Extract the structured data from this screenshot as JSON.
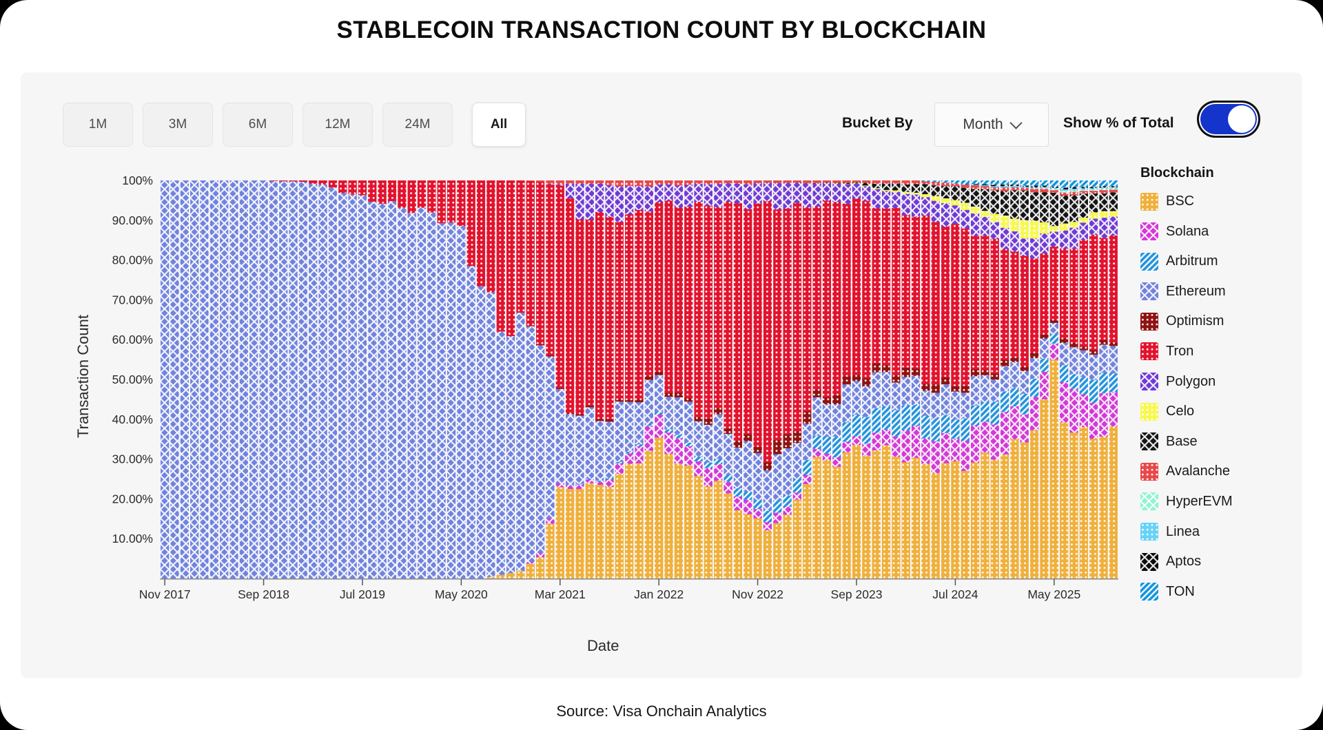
{
  "page": {
    "title": "STABLECOIN TRANSACTION COUNT BY BLOCKCHAIN",
    "source": "Source: Visa Onchain Analytics"
  },
  "controls": {
    "time_ranges": [
      "1M",
      "3M",
      "6M",
      "12M",
      "24M",
      "All"
    ],
    "selected_range": "All",
    "bucket_by_label": "Bucket By",
    "bucket_by_value": "Month",
    "toggle_label": "Show % of Total",
    "toggle_on": true,
    "toggle_color": "#1434CB"
  },
  "legend": {
    "title": "Blockchain",
    "items": [
      {
        "label": "BSC",
        "color": "#EFB03C",
        "pattern": "dots"
      },
      {
        "label": "Solana",
        "color": "#D438D8",
        "pattern": "cross"
      },
      {
        "label": "Arbitrum",
        "color": "#2493DD",
        "pattern": "stripes"
      },
      {
        "label": "Ethereum",
        "color": "#7183DE",
        "pattern": "cross"
      },
      {
        "label": "Optimism",
        "color": "#8F1212",
        "pattern": "dots"
      },
      {
        "label": "Tron",
        "color": "#E2132E",
        "pattern": "dots"
      },
      {
        "label": "Polygon",
        "color": "#6F3BD5",
        "pattern": "cross"
      },
      {
        "label": "Celo",
        "color": "#F7F852",
        "pattern": "dots"
      },
      {
        "label": "Base",
        "color": "#151515",
        "pattern": "cross"
      },
      {
        "label": "Avalanche",
        "color": "#E8484A",
        "pattern": "dots"
      },
      {
        "label": "HyperEVM",
        "color": "#93F2D1",
        "pattern": "cross"
      },
      {
        "label": "Linea",
        "color": "#66D2F6",
        "pattern": "dots"
      },
      {
        "label": "Aptos",
        "color": "#0A0A0A",
        "pattern": "cross"
      },
      {
        "label": "TON",
        "color": "#1494DE",
        "pattern": "stripes"
      }
    ]
  },
  "chart_data": {
    "type": "bar",
    "variant": "stacked-100-percent-monthly",
    "title": "STABLECOIN TRANSACTION COUNT BY BLOCKCHAIN",
    "xlabel": "Date",
    "ylabel": "Transaction Count",
    "x_start": "Nov 2017",
    "x_end": "Nov 2025",
    "months_total": 97,
    "x_tick_labels": [
      "Nov 2017",
      "Sep 2018",
      "Jul 2019",
      "May 2020",
      "Mar 2021",
      "Jan 2022",
      "Nov 2022",
      "Sep 2023",
      "Jul 2024",
      "May 2025"
    ],
    "x_tick_every_months": 10,
    "y_tick_labels": [
      "100%",
      "90.00%",
      "80.00%",
      "70.00%",
      "60.00%",
      "50.00%",
      "40.00%",
      "30.00%",
      "20.00%",
      "10.00%"
    ],
    "ylim": [
      0,
      100
    ],
    "grid": false,
    "legend_position": "right",
    "series_order_bottom_to_top": [
      "BSC",
      "Solana",
      "Arbitrum",
      "Ethereum",
      "Optimism",
      "Tron",
      "Polygon",
      "Celo",
      "Base",
      "Avalanche",
      "HyperEVM",
      "Linea",
      "Aptos",
      "TON"
    ],
    "estimation_note": "Percent-of-total values estimated from pixels; monthly bars are linearly interpolated between these anchor months (0 = Nov 2017).",
    "anchors": {
      "month_index": [
        0,
        10,
        14,
        16,
        20,
        24,
        28,
        30,
        32,
        34,
        36,
        38,
        40,
        42,
        44,
        47,
        50,
        53,
        56,
        59,
        61,
        63,
        66,
        70,
        73,
        76,
        80,
        84,
        87,
        89,
        90,
        91,
        92,
        94,
        96
      ],
      "series": {
        "BSC": [
          0,
          0,
          0,
          0,
          0,
          0,
          0,
          0,
          0,
          1,
          2,
          5,
          21,
          24,
          25,
          28,
          32,
          27,
          25,
          16,
          12,
          14,
          30,
          33,
          30,
          28,
          30,
          30,
          33,
          45,
          55,
          44,
          38,
          37,
          36
        ],
        "Solana": [
          0,
          0,
          0,
          0,
          0,
          0,
          0,
          0,
          0,
          0,
          0,
          1,
          1,
          1,
          1,
          3,
          6,
          5,
          4,
          3,
          2,
          2,
          2,
          2.5,
          4,
          8,
          7,
          9,
          8,
          7,
          5,
          10,
          10,
          9,
          9
        ],
        "Arbitrum": [
          0,
          0,
          0,
          0,
          0,
          0,
          0,
          0,
          0,
          0,
          0,
          0,
          0,
          0.2,
          0.3,
          0.4,
          0.6,
          1,
          1.5,
          2,
          2.5,
          3,
          4,
          5.5,
          6,
          6,
          5,
          5,
          5,
          4,
          2.5,
          4,
          4,
          5,
          5
        ],
        "Ethereum": [
          100,
          100,
          99.7,
          99,
          96,
          93,
          91,
          88,
          75,
          62,
          60,
          55,
          23,
          18,
          16,
          12,
          9,
          10,
          10,
          11,
          11,
          11,
          9,
          8,
          8,
          7,
          7,
          6,
          6.5,
          5,
          3,
          6,
          6,
          6.5,
          6.5
        ],
        "Optimism": [
          0,
          0,
          0,
          0,
          0,
          0,
          0,
          0,
          0,
          0,
          0,
          0.2,
          0.3,
          0.3,
          0.5,
          0.5,
          1,
          1,
          1.5,
          1.5,
          2,
          4,
          2,
          1.7,
          2,
          2,
          1.5,
          1.5,
          1.2,
          1,
          0.8,
          1,
          1,
          1,
          1
        ],
        "Tron": [
          0,
          0,
          0.3,
          1,
          4,
          7,
          9,
          12,
          25,
          37,
          38,
          38,
          53,
          48,
          49,
          46,
          45,
          50,
          51,
          60,
          64,
          58,
          47,
          43,
          41,
          40,
          38,
          33,
          27,
          22,
          17,
          21,
          24,
          27,
          29
        ],
        "Polygon": [
          0,
          0,
          0,
          0,
          0,
          0,
          0,
          0,
          0,
          0,
          0,
          0,
          0.2,
          8,
          8,
          8,
          4.5,
          5,
          5,
          5.5,
          5.5,
          6,
          5,
          4,
          4.5,
          5,
          5,
          5,
          5,
          4.5,
          4,
          4.5,
          4.5,
          4.5,
          5
        ],
        "Celo": [
          0,
          0,
          0,
          0,
          0,
          0,
          0,
          0,
          0,
          0,
          0,
          0,
          0,
          0,
          0,
          0,
          0,
          0,
          0,
          0,
          0,
          0,
          0,
          0.1,
          0.3,
          0.5,
          1.5,
          2,
          4.5,
          3,
          1.5,
          1.5,
          1.5,
          1.5,
          1.7
        ],
        "Base": [
          0,
          0,
          0,
          0,
          0,
          0,
          0,
          0,
          0,
          0,
          0,
          0,
          0,
          0,
          0,
          0,
          0,
          0,
          0,
          0,
          0,
          0,
          0.1,
          0.3,
          1.5,
          2,
          3.5,
          6,
          7,
          7.5,
          8,
          7.5,
          7,
          5,
          4.6
        ],
        "Avalanche": [
          0,
          0,
          0,
          0,
          0,
          0,
          0,
          0,
          0,
          0,
          0,
          0.3,
          1,
          0.7,
          1,
          1.5,
          1,
          1,
          0.8,
          0.8,
          0.5,
          0.5,
          0.6,
          0.5,
          0.7,
          0.8,
          0.8,
          0.8,
          0.7,
          0.8,
          0.8,
          0.8,
          0.8,
          0.7,
          0.7
        ],
        "HyperEVM": [
          0,
          0,
          0,
          0,
          0,
          0,
          0,
          0,
          0,
          0,
          0,
          0,
          0,
          0,
          0,
          0,
          0,
          0,
          0,
          0,
          0,
          0,
          0,
          0,
          0,
          0,
          0,
          0,
          0,
          0.2,
          0.3,
          0.4,
          0.4,
          0.3,
          0.3
        ],
        "Linea": [
          0,
          0,
          0,
          0,
          0,
          0,
          0,
          0,
          0,
          0,
          0,
          0,
          0,
          0,
          0,
          0,
          0,
          0,
          0,
          0,
          0,
          0,
          0,
          0,
          0,
          0,
          0,
          0.3,
          0.3,
          0.3,
          0.3,
          0.4,
          0.4,
          0.3,
          0.3
        ],
        "Aptos": [
          0,
          0,
          0,
          0,
          0,
          0,
          0,
          0,
          0,
          0,
          0,
          0,
          0,
          0,
          0,
          0,
          0,
          0,
          0,
          0,
          0,
          0,
          0,
          0,
          0,
          0,
          0,
          0.3,
          0.4,
          0.4,
          0.3,
          0.4,
          0.4,
          0.3,
          0.3
        ],
        "TON": [
          0,
          0,
          0,
          0,
          0,
          0,
          0,
          0,
          0,
          0,
          0,
          0,
          0,
          0,
          0,
          0,
          0,
          0,
          0,
          0,
          0,
          0,
          0,
          0,
          0,
          0,
          0.7,
          1,
          1.2,
          1.4,
          1.5,
          1.6,
          1.6,
          1.4,
          1.5
        ]
      }
    }
  }
}
